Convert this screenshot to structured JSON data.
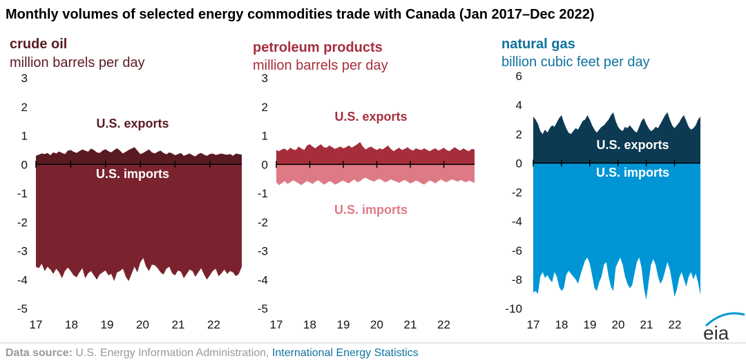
{
  "title": "Monthly volumes of selected energy commodities trade with Canada (Jan 2017–Dec 2022)",
  "source": {
    "label": "Data source:",
    "text": "U.S. Energy Information Administration,",
    "link": "International Energy Statistics"
  },
  "logo": "eia",
  "colors": {
    "crude_exports": "#5a1a22",
    "crude_imports": "#7a232e",
    "crude_title": "#5a1a22",
    "petro_exports": "#a62e3c",
    "petro_imports": "#de7a86",
    "petro_title": "#a62e3c",
    "gas_exports": "#0c3a52",
    "gas_imports": "#0096d6",
    "gas_title": "#0f72a0"
  },
  "chart_data": [
    {
      "type": "area",
      "title": "crude oil",
      "ylabel": "million barrels per day",
      "ylim": [
        -5,
        3
      ],
      "yticks": [
        "3",
        "2",
        "1",
        "0",
        "-1",
        "-2",
        "-3",
        "-4",
        "-5"
      ],
      "xticks": [
        "17",
        "18",
        "19",
        "20",
        "21",
        "22"
      ],
      "series": [
        {
          "name": "U.S. exports",
          "label_pos": "above",
          "values": [
            0.3,
            0.34,
            0.38,
            0.36,
            0.4,
            0.32,
            0.42,
            0.38,
            0.45,
            0.4,
            0.36,
            0.48,
            0.5,
            0.44,
            0.4,
            0.46,
            0.52,
            0.48,
            0.44,
            0.55,
            0.5,
            0.42,
            0.4,
            0.48,
            0.53,
            0.46,
            0.42,
            0.5,
            0.56,
            0.48,
            0.38,
            0.44,
            0.5,
            0.55,
            0.6,
            0.48,
            0.36,
            0.4,
            0.46,
            0.52,
            0.42,
            0.38,
            0.44,
            0.48,
            0.4,
            0.35,
            0.42,
            0.38,
            0.32,
            0.36,
            0.4,
            0.3,
            0.34,
            0.38,
            0.32,
            0.28,
            0.36,
            0.4,
            0.34,
            0.3,
            0.36,
            0.38,
            0.33,
            0.35,
            0.38,
            0.35,
            0.34,
            0.36,
            0.3,
            0.38,
            0.36,
            0.34
          ]
        },
        {
          "name": "U.S. imports",
          "label_pos": "below",
          "values": [
            -3.55,
            -3.6,
            -3.45,
            -3.7,
            -3.55,
            -3.65,
            -3.8,
            -3.62,
            -3.75,
            -3.95,
            -3.7,
            -3.58,
            -3.7,
            -3.85,
            -3.92,
            -3.75,
            -3.6,
            -3.95,
            -3.78,
            -3.7,
            -3.85,
            -4.0,
            -3.82,
            -3.75,
            -3.68,
            -3.85,
            -3.8,
            -4.05,
            -3.75,
            -3.7,
            -3.62,
            -3.9,
            -4.05,
            -3.8,
            -3.55,
            -3.75,
            -3.4,
            -3.25,
            -3.55,
            -3.7,
            -3.48,
            -3.5,
            -3.6,
            -3.75,
            -3.82,
            -3.62,
            -3.55,
            -3.78,
            -3.85,
            -3.68,
            -3.72,
            -3.95,
            -3.8,
            -3.65,
            -3.7,
            -3.9,
            -3.75,
            -3.6,
            -3.82,
            -4.0,
            -3.85,
            -3.7,
            -3.62,
            -3.88,
            -3.78,
            -3.65,
            -3.8,
            -3.7,
            -3.75,
            -3.88,
            -3.8,
            -3.55
          ]
        }
      ]
    },
    {
      "type": "area",
      "title": "petroleum products",
      "ylabel": "million barrels per day",
      "ylim": [
        -5,
        3
      ],
      "yticks": [
        "3",
        "2",
        "1",
        "0",
        "-1",
        "-2",
        "-3",
        "-4",
        "-5"
      ],
      "xticks": [
        "17",
        "18",
        "19",
        "20",
        "21",
        "22"
      ],
      "series": [
        {
          "name": "U.S. exports",
          "label_pos": "above",
          "values": [
            0.5,
            0.46,
            0.52,
            0.55,
            0.48,
            0.58,
            0.52,
            0.5,
            0.62,
            0.55,
            0.5,
            0.66,
            0.7,
            0.62,
            0.56,
            0.64,
            0.7,
            0.6,
            0.58,
            0.66,
            0.6,
            0.54,
            0.58,
            0.62,
            0.56,
            0.6,
            0.66,
            0.58,
            0.64,
            0.7,
            0.78,
            0.62,
            0.52,
            0.58,
            0.62,
            0.55,
            0.5,
            0.56,
            0.52,
            0.58,
            0.66,
            0.54,
            0.46,
            0.52,
            0.58,
            0.5,
            0.54,
            0.6,
            0.52,
            0.48,
            0.56,
            0.52,
            0.5,
            0.56,
            0.5,
            0.46,
            0.52,
            0.56,
            0.48,
            0.52,
            0.58,
            0.5,
            0.46,
            0.54,
            0.6,
            0.52,
            0.48,
            0.56,
            0.5,
            0.46,
            0.54,
            0.52
          ]
        },
        {
          "name": "U.S. imports",
          "label_pos": "below",
          "values": [
            -0.62,
            -0.72,
            -0.65,
            -0.58,
            -0.68,
            -0.62,
            -0.55,
            -0.6,
            -0.66,
            -0.72,
            -0.64,
            -0.58,
            -0.62,
            -0.68,
            -0.6,
            -0.55,
            -0.62,
            -0.7,
            -0.65,
            -0.58,
            -0.62,
            -0.7,
            -0.66,
            -0.6,
            -0.56,
            -0.62,
            -0.66,
            -0.58,
            -0.52,
            -0.62,
            -0.58,
            -0.5,
            -0.46,
            -0.52,
            -0.56,
            -0.6,
            -0.54,
            -0.5,
            -0.56,
            -0.62,
            -0.58,
            -0.52,
            -0.56,
            -0.6,
            -0.64,
            -0.58,
            -0.54,
            -0.6,
            -0.66,
            -0.62,
            -0.56,
            -0.6,
            -0.66,
            -0.7,
            -0.62,
            -0.56,
            -0.6,
            -0.66,
            -0.58,
            -0.52,
            -0.58,
            -0.62,
            -0.56,
            -0.52,
            -0.56,
            -0.6,
            -0.54,
            -0.58,
            -0.62,
            -0.56,
            -0.6,
            -0.64
          ]
        }
      ]
    },
    {
      "type": "area",
      "title": "natural gas",
      "ylabel": "billion cubic feet per day",
      "ylim": [
        -10,
        6
      ],
      "yticks": [
        "6",
        "4",
        "2",
        "0",
        "-2",
        "-4",
        "-6",
        "-8",
        "-10"
      ],
      "xticks": [
        "17",
        "18",
        "19",
        "20",
        "21",
        "22"
      ],
      "series": [
        {
          "name": "U.S. exports",
          "label_pos": "above",
          "values": [
            3.2,
            3.0,
            2.7,
            2.2,
            2.0,
            2.3,
            2.1,
            2.4,
            2.6,
            2.5,
            2.8,
            3.1,
            3.3,
            2.8,
            2.4,
            2.1,
            2.0,
            2.2,
            2.4,
            2.3,
            2.6,
            2.9,
            3.0,
            3.3,
            3.0,
            2.6,
            2.3,
            2.1,
            2.3,
            2.5,
            2.6,
            2.8,
            3.0,
            3.3,
            3.5,
            2.9,
            2.5,
            2.3,
            2.2,
            2.5,
            2.4,
            2.6,
            2.4,
            2.2,
            2.1,
            2.5,
            2.9,
            3.1,
            2.7,
            2.4,
            2.2,
            2.3,
            2.5,
            2.4,
            2.7,
            3.0,
            3.3,
            3.5,
            3.0,
            2.6,
            2.4,
            2.6,
            2.8,
            3.1,
            3.3,
            2.9,
            2.5,
            2.3,
            2.4,
            2.6,
            3.0,
            3.2
          ]
        },
        {
          "name": "U.S. imports",
          "label_pos": "below",
          "values": [
            -8.9,
            -8.8,
            -9.0,
            -7.8,
            -7.5,
            -7.9,
            -7.7,
            -8.0,
            -8.2,
            -7.5,
            -7.8,
            -8.5,
            -8.8,
            -8.6,
            -7.7,
            -7.4,
            -7.6,
            -7.8,
            -8.0,
            -8.3,
            -7.7,
            -7.2,
            -6.7,
            -6.5,
            -6.9,
            -7.7,
            -8.6,
            -8.8,
            -8.2,
            -7.8,
            -7.0,
            -6.8,
            -7.8,
            -8.5,
            -8.8,
            -7.2,
            -6.8,
            -6.5,
            -7.0,
            -7.8,
            -8.3,
            -8.6,
            -8.4,
            -7.6,
            -6.8,
            -6.5,
            -7.2,
            -8.6,
            -9.4,
            -8.2,
            -7.0,
            -6.6,
            -7.0,
            -7.8,
            -8.3,
            -8.0,
            -7.4,
            -6.8,
            -7.3,
            -8.2,
            -9.2,
            -8.7,
            -7.9,
            -7.5,
            -8.0,
            -8.5,
            -7.8,
            -7.5,
            -8.0,
            -7.6,
            -8.2,
            -9.1
          ]
        }
      ]
    }
  ]
}
